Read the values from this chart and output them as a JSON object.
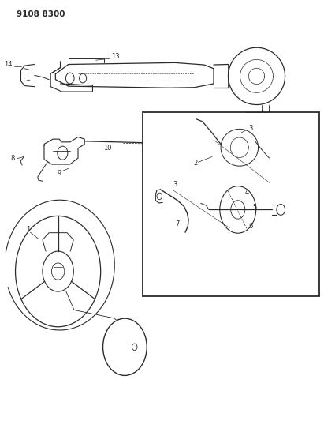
{
  "title_code": "9108 8300",
  "bg_color": "#ffffff",
  "line_color": "#2a2a2a",
  "fig_width": 4.11,
  "fig_height": 5.33,
  "dpi": 100
}
